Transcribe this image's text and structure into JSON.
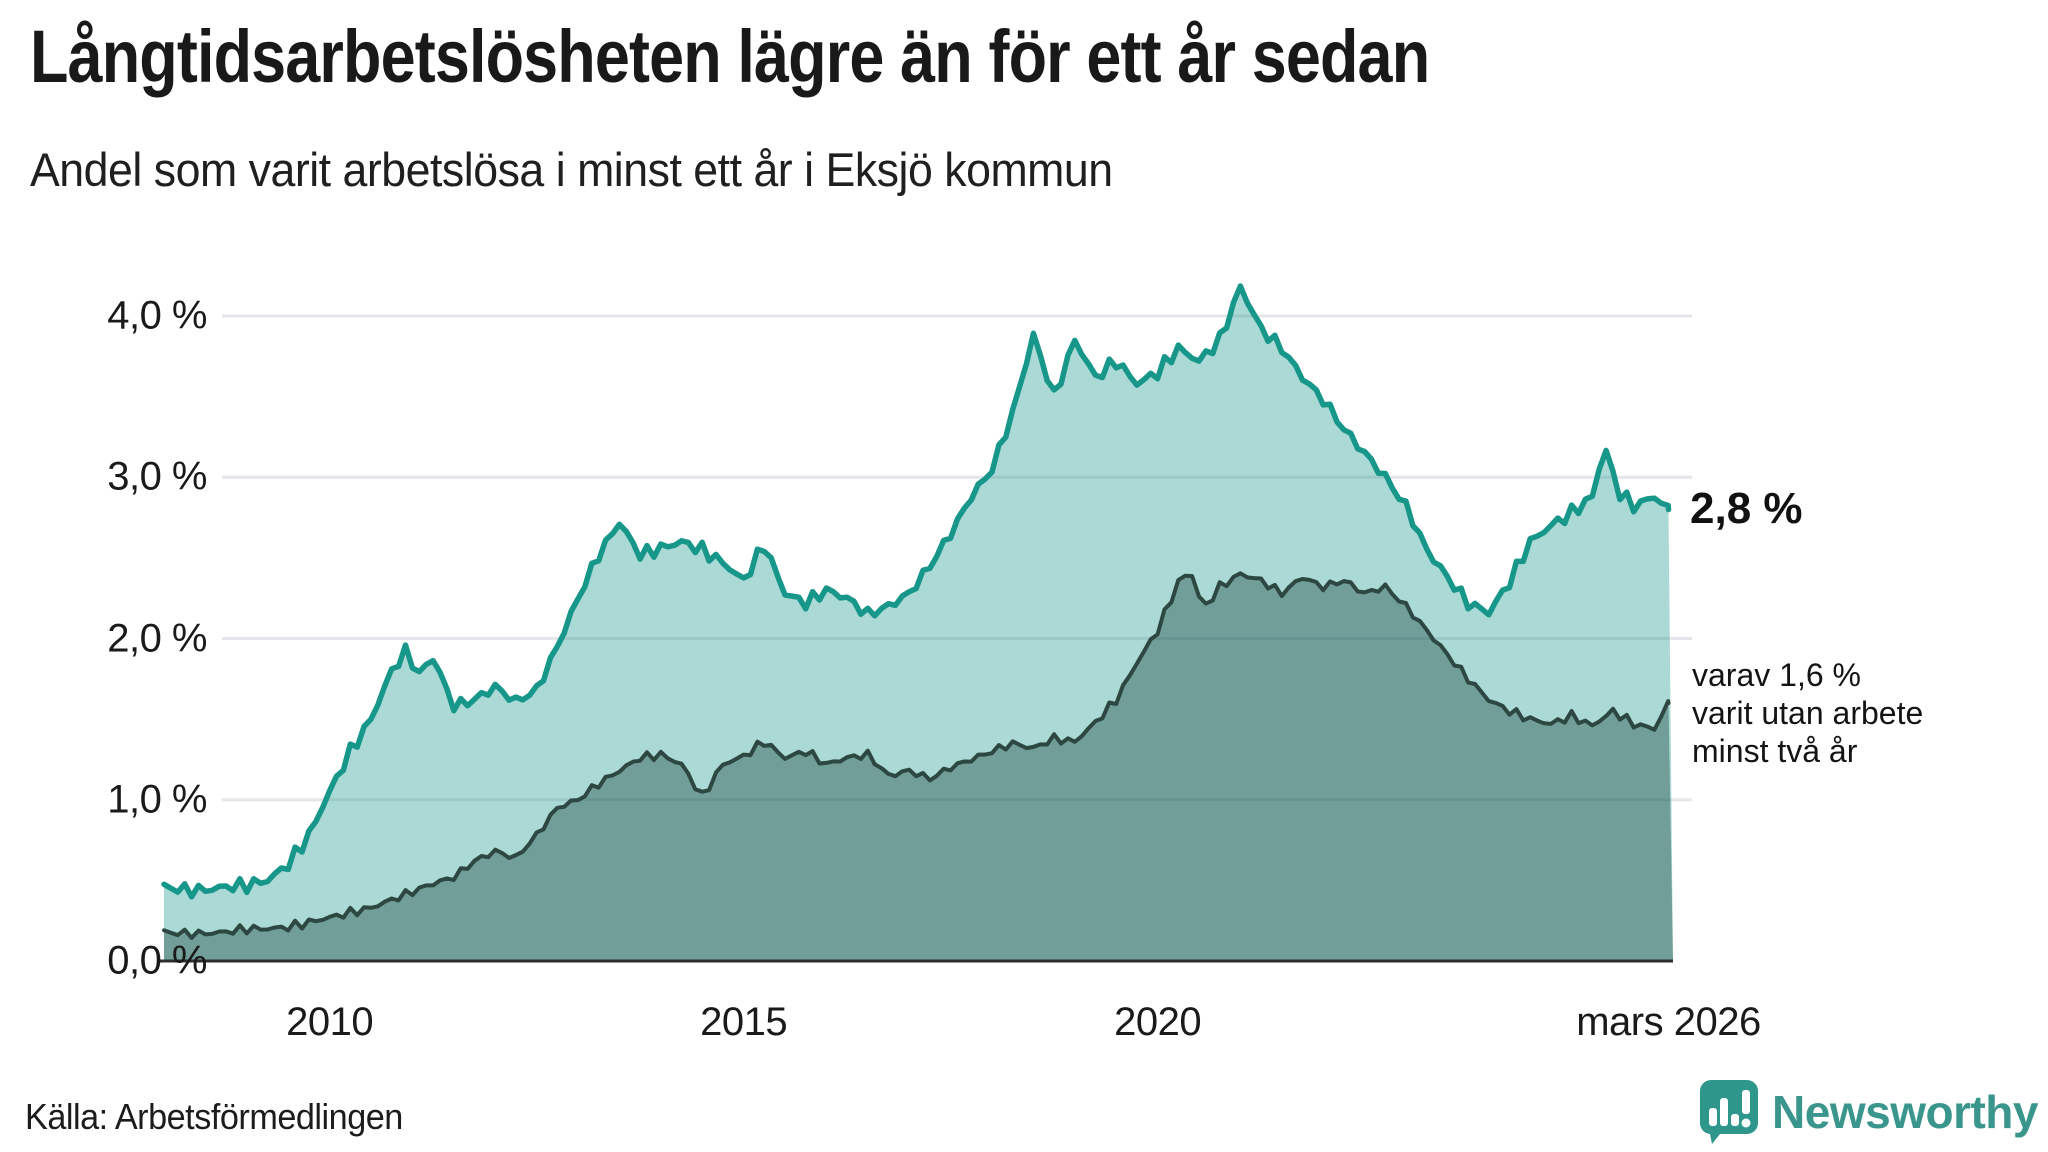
{
  "title": "Långtidsarbetslösheten lägre än för ett år sedan",
  "subtitle": "Andel som varit arbetslösa i minst ett år i Eksjö kommun",
  "source": "Källa: Arbetsförmedlingen",
  "branding": {
    "name": "Newsworthy"
  },
  "annotations": {
    "latest_total": "2,8 %",
    "secondary_line1": "varav 1,6 %",
    "secondary_line2": "varit utan arbete",
    "secondary_line3": "minst två år"
  },
  "colors": {
    "teal_stroke": "#17968a",
    "teal_fill": "rgba(23,150,138,0.36)",
    "dark_stroke": "#2d4742",
    "dark_fill": "rgba(21,63,55,0.38)",
    "grid": "#e5e6ea",
    "axis": "#2b2f2e",
    "logo_teal": "#2f968b",
    "text": "#1a1a1a"
  },
  "chart_data": {
    "type": "area",
    "title": "Långtidsarbetslösheten lägre än för ett år sedan",
    "subtitle": "Andel som varit arbetslösa i minst ett år i Eksjö kommun",
    "unit": "%",
    "x_range": [
      2008.0,
      2026.17
    ],
    "ylim": [
      0,
      4.35
    ],
    "grid": true,
    "legend_position": "none",
    "y_axis": {
      "ticks": [
        {
          "value": 0,
          "label": "0,0 %"
        },
        {
          "value": 1,
          "label": "1,0 %"
        },
        {
          "value": 2,
          "label": "2,0 %"
        },
        {
          "value": 3,
          "label": "3,0 %"
        },
        {
          "value": 4,
          "label": "4,0 %"
        }
      ]
    },
    "x_axis": {
      "ticks": [
        {
          "t": 2010,
          "label": "2010"
        },
        {
          "t": 2015,
          "label": "2015"
        },
        {
          "t": 2020,
          "label": "2020"
        },
        {
          "t": 2026.17,
          "label": "mars 2026"
        }
      ]
    },
    "series": [
      {
        "name": "Arbetslösa minst ett år",
        "latest_value": 2.8,
        "points": [
          [
            2008.0,
            0.46
          ],
          [
            2008.25,
            0.44
          ],
          [
            2008.5,
            0.44
          ],
          [
            2008.75,
            0.46
          ],
          [
            2009.0,
            0.47
          ],
          [
            2009.25,
            0.5
          ],
          [
            2009.5,
            0.6
          ],
          [
            2009.75,
            0.78
          ],
          [
            2010.0,
            1.05
          ],
          [
            2010.25,
            1.3
          ],
          [
            2010.5,
            1.5
          ],
          [
            2010.75,
            1.8
          ],
          [
            2010.92,
            1.92
          ],
          [
            2011.08,
            1.78
          ],
          [
            2011.25,
            1.88
          ],
          [
            2011.5,
            1.58
          ],
          [
            2011.75,
            1.62
          ],
          [
            2012.0,
            1.7
          ],
          [
            2012.25,
            1.61
          ],
          [
            2012.5,
            1.68
          ],
          [
            2012.75,
            1.95
          ],
          [
            2013.0,
            2.25
          ],
          [
            2013.25,
            2.52
          ],
          [
            2013.5,
            2.72
          ],
          [
            2013.75,
            2.52
          ],
          [
            2014.0,
            2.56
          ],
          [
            2014.25,
            2.6
          ],
          [
            2014.5,
            2.55
          ],
          [
            2014.75,
            2.47
          ],
          [
            2015.0,
            2.36
          ],
          [
            2015.25,
            2.58
          ],
          [
            2015.5,
            2.28
          ],
          [
            2015.75,
            2.22
          ],
          [
            2016.0,
            2.3
          ],
          [
            2016.25,
            2.25
          ],
          [
            2016.5,
            2.15
          ],
          [
            2016.75,
            2.2
          ],
          [
            2017.0,
            2.28
          ],
          [
            2017.25,
            2.45
          ],
          [
            2017.5,
            2.65
          ],
          [
            2017.75,
            2.88
          ],
          [
            2018.0,
            3.05
          ],
          [
            2018.25,
            3.4
          ],
          [
            2018.5,
            3.88
          ],
          [
            2018.75,
            3.5
          ],
          [
            2019.0,
            3.85
          ],
          [
            2019.25,
            3.62
          ],
          [
            2019.5,
            3.72
          ],
          [
            2019.75,
            3.58
          ],
          [
            2020.0,
            3.65
          ],
          [
            2020.25,
            3.8
          ],
          [
            2020.5,
            3.72
          ],
          [
            2020.75,
            3.85
          ],
          [
            2021.0,
            4.18
          ],
          [
            2021.25,
            3.92
          ],
          [
            2021.5,
            3.8
          ],
          [
            2021.75,
            3.62
          ],
          [
            2022.0,
            3.48
          ],
          [
            2022.25,
            3.3
          ],
          [
            2022.5,
            3.15
          ],
          [
            2022.75,
            3.0
          ],
          [
            2023.0,
            2.82
          ],
          [
            2023.25,
            2.55
          ],
          [
            2023.5,
            2.38
          ],
          [
            2023.75,
            2.22
          ],
          [
            2024.0,
            2.16
          ],
          [
            2024.25,
            2.35
          ],
          [
            2024.5,
            2.6
          ],
          [
            2024.75,
            2.7
          ],
          [
            2025.0,
            2.78
          ],
          [
            2025.25,
            2.88
          ],
          [
            2025.4,
            3.2
          ],
          [
            2025.55,
            2.92
          ],
          [
            2025.75,
            2.82
          ],
          [
            2026.0,
            2.88
          ],
          [
            2026.17,
            2.8
          ]
        ]
      },
      {
        "name": "Arbetslösa minst två år",
        "latest_value": 1.6,
        "points": [
          [
            2008.0,
            0.18
          ],
          [
            2008.25,
            0.17
          ],
          [
            2008.5,
            0.17
          ],
          [
            2008.75,
            0.18
          ],
          [
            2009.0,
            0.2
          ],
          [
            2009.25,
            0.2
          ],
          [
            2009.5,
            0.21
          ],
          [
            2009.75,
            0.24
          ],
          [
            2010.0,
            0.27
          ],
          [
            2010.25,
            0.3
          ],
          [
            2010.5,
            0.33
          ],
          [
            2010.75,
            0.38
          ],
          [
            2011.0,
            0.43
          ],
          [
            2011.25,
            0.48
          ],
          [
            2011.5,
            0.52
          ],
          [
            2011.75,
            0.62
          ],
          [
            2012.0,
            0.68
          ],
          [
            2012.25,
            0.64
          ],
          [
            2012.5,
            0.78
          ],
          [
            2012.75,
            0.95
          ],
          [
            2013.0,
            1.0
          ],
          [
            2013.25,
            1.1
          ],
          [
            2013.5,
            1.18
          ],
          [
            2013.75,
            1.26
          ],
          [
            2014.0,
            1.28
          ],
          [
            2014.25,
            1.22
          ],
          [
            2014.5,
            1.02
          ],
          [
            2014.75,
            1.22
          ],
          [
            2015.0,
            1.27
          ],
          [
            2015.25,
            1.36
          ],
          [
            2015.5,
            1.26
          ],
          [
            2015.75,
            1.3
          ],
          [
            2016.0,
            1.22
          ],
          [
            2016.25,
            1.26
          ],
          [
            2016.5,
            1.28
          ],
          [
            2016.75,
            1.15
          ],
          [
            2017.0,
            1.18
          ],
          [
            2017.25,
            1.13
          ],
          [
            2017.5,
            1.2
          ],
          [
            2017.75,
            1.25
          ],
          [
            2018.0,
            1.3
          ],
          [
            2018.25,
            1.35
          ],
          [
            2018.5,
            1.32
          ],
          [
            2018.75,
            1.38
          ],
          [
            2019.0,
            1.36
          ],
          [
            2019.25,
            1.48
          ],
          [
            2019.5,
            1.62
          ],
          [
            2019.75,
            1.85
          ],
          [
            2020.0,
            2.05
          ],
          [
            2020.25,
            2.35
          ],
          [
            2020.4,
            2.42
          ],
          [
            2020.55,
            2.18
          ],
          [
            2020.75,
            2.32
          ],
          [
            2021.0,
            2.4
          ],
          [
            2021.25,
            2.36
          ],
          [
            2021.5,
            2.28
          ],
          [
            2021.75,
            2.38
          ],
          [
            2022.0,
            2.32
          ],
          [
            2022.25,
            2.36
          ],
          [
            2022.5,
            2.28
          ],
          [
            2022.75,
            2.32
          ],
          [
            2023.0,
            2.2
          ],
          [
            2023.25,
            2.05
          ],
          [
            2023.5,
            1.9
          ],
          [
            2023.75,
            1.75
          ],
          [
            2024.0,
            1.62
          ],
          [
            2024.25,
            1.55
          ],
          [
            2024.5,
            1.5
          ],
          [
            2024.75,
            1.47
          ],
          [
            2025.0,
            1.52
          ],
          [
            2025.25,
            1.46
          ],
          [
            2025.5,
            1.55
          ],
          [
            2025.75,
            1.47
          ],
          [
            2026.0,
            1.44
          ],
          [
            2026.17,
            1.6
          ]
        ]
      }
    ]
  }
}
